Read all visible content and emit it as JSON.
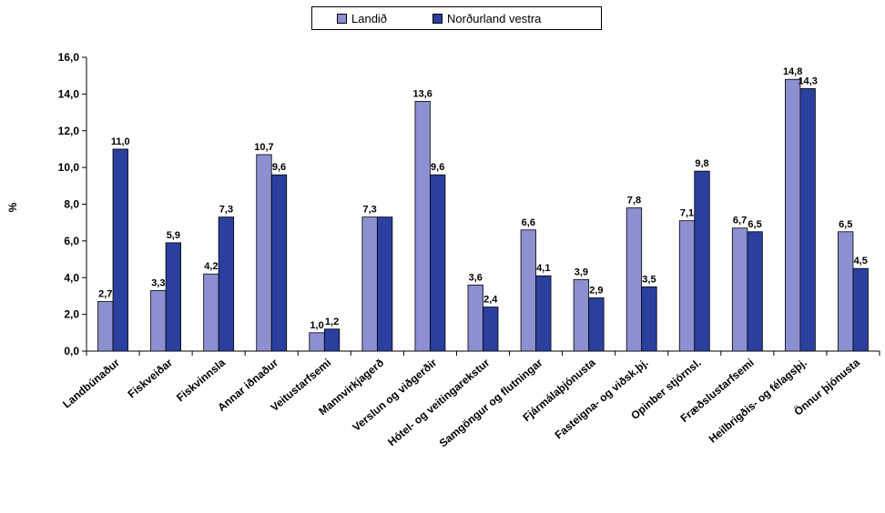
{
  "chart_data": {
    "type": "bar",
    "title": "",
    "xlabel": "",
    "ylabel": "%",
    "ylim": [
      0,
      16
    ],
    "yticks": [
      "0,0",
      "2,0",
      "4,0",
      "6,0",
      "8,0",
      "10,0",
      "12,0",
      "14,0",
      "16,0"
    ],
    "grid": false,
    "legend_position": "top-center",
    "categories": [
      "Landbúnaður",
      "Fiskveiðar",
      "Fiskvinnsla",
      "Annar iðnaður",
      "Veitustarfsemi",
      "Mannvirkjagerð",
      "Verslun og viðgerðir",
      "Hótel- og veitingarekstur",
      "Samgöngur og flutningar",
      "Fjármálaþjónusta",
      "Fasteigna- og viðsk.þj.",
      "Opinber stjórnsl.",
      "Fræðslustarfsemi",
      "Heilbrigðis- og félagsþj.",
      "Önnur þjónusta"
    ],
    "series": [
      {
        "name": "Landið",
        "color": "#8c8fd0",
        "values": [
          2.7,
          3.3,
          4.2,
          10.7,
          1.0,
          7.3,
          13.6,
          3.6,
          6.6,
          3.9,
          7.8,
          7.1,
          6.7,
          14.8,
          6.5
        ],
        "labels": [
          "2,7",
          "3,3",
          "4,2",
          "10,7",
          "1,0",
          "7,3",
          "13,6",
          "3,6",
          "6,6",
          "3,9",
          "7,8",
          "7,1",
          "6,7",
          "14,8",
          "6,5"
        ]
      },
      {
        "name": "Norðurland vestra",
        "color": "#2b3f9e",
        "values": [
          11.0,
          5.9,
          7.3,
          9.6,
          1.2,
          7.3,
          9.6,
          2.4,
          4.1,
          2.9,
          3.5,
          9.8,
          6.5,
          14.3,
          4.5
        ],
        "labels": [
          "11,0",
          "5,9",
          "7,3",
          "9,6",
          "1,2",
          "",
          "9,6",
          "2,4",
          "4,1",
          "2,9",
          "3,5",
          "9,8",
          "6,5",
          "14,3",
          "4,5"
        ]
      }
    ]
  }
}
